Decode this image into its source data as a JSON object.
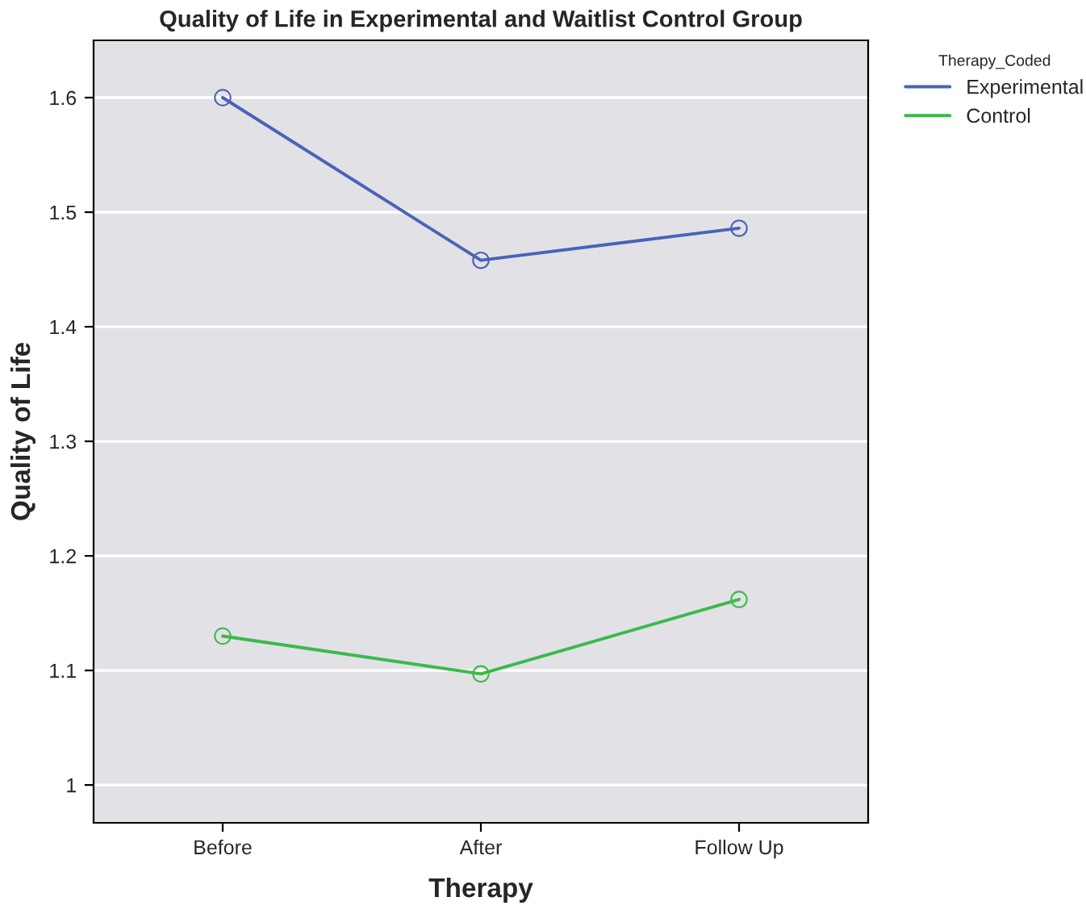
{
  "chart_data": {
    "type": "line",
    "title": "Quality of Life in Experimental and Waitlist Control Group",
    "xlabel": "Therapy",
    "ylabel": "Quality of Life",
    "legend_title": "Therapy_Coded",
    "categories": [
      "Before",
      "After",
      "Follow Up"
    ],
    "series": [
      {
        "name": "Experimental",
        "color": "#4a62b8",
        "values": [
          1.6,
          1.458,
          1.486
        ]
      },
      {
        "name": "Control",
        "color": "#3cb94a",
        "values": [
          1.13,
          1.097,
          1.162
        ]
      }
    ],
    "ylim": [
      0.967,
      1.65
    ],
    "yticks": [
      {
        "value": 1,
        "label": "1"
      },
      1.1,
      1.2,
      1.3,
      1.4,
      1.5,
      1.6
    ],
    "grid": "y",
    "legend": "top right",
    "marker": "circle",
    "line_style": "solid"
  }
}
